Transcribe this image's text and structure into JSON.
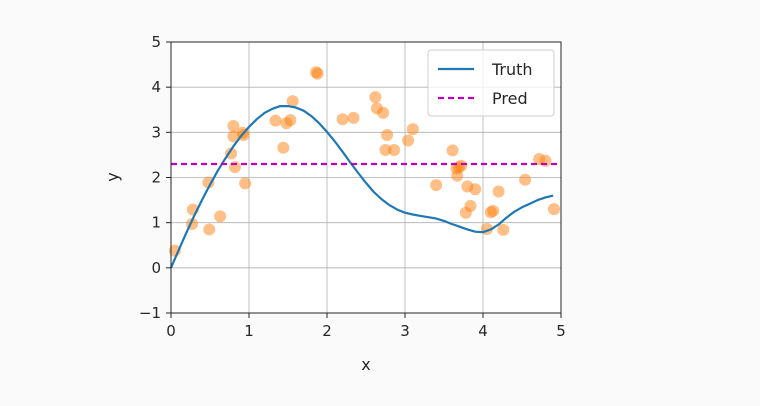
{
  "chart_data": {
    "type": "scatter",
    "xlabel": "x",
    "ylabel": "y",
    "xlim": [
      0,
      5
    ],
    "ylim": [
      -1,
      5
    ],
    "xticks": [
      0,
      1,
      2,
      3,
      4,
      5
    ],
    "yticks": [
      -1,
      0,
      1,
      2,
      3,
      4,
      5
    ],
    "grid": true,
    "legend_position": "top-right",
    "series": [
      {
        "name": "Truth",
        "kind": "line",
        "color": "#1f77b4",
        "x": [
          0.0,
          0.1,
          0.2,
          0.3,
          0.4,
          0.5,
          0.6,
          0.7,
          0.8,
          0.9,
          1.0,
          1.1,
          1.2,
          1.3,
          1.4,
          1.5,
          1.6,
          1.7,
          1.8,
          1.9,
          2.0,
          2.1,
          2.2,
          2.3,
          2.4,
          2.5,
          2.6,
          2.7,
          2.8,
          2.9,
          3.0,
          3.1,
          3.2,
          3.3,
          3.4,
          3.5,
          3.6,
          3.7,
          3.8,
          3.9,
          4.0,
          4.1,
          4.2,
          4.3,
          4.4,
          4.5,
          4.6,
          4.7,
          4.8,
          4.9
        ],
        "y": [
          0.0,
          0.4,
          0.79,
          1.16,
          1.51,
          1.84,
          2.15,
          2.43,
          2.69,
          2.92,
          3.12,
          3.29,
          3.43,
          3.52,
          3.58,
          3.58,
          3.55,
          3.48,
          3.36,
          3.2,
          3.01,
          2.8,
          2.57,
          2.33,
          2.1,
          1.88,
          1.68,
          1.52,
          1.39,
          1.29,
          1.22,
          1.18,
          1.15,
          1.12,
          1.09,
          1.04,
          0.97,
          0.91,
          0.85,
          0.8,
          0.79,
          0.85,
          0.96,
          1.11,
          1.24,
          1.34,
          1.42,
          1.5,
          1.56,
          1.6
        ]
      },
      {
        "name": "Pred",
        "kind": "dashed-line",
        "color": "#bf00bf",
        "x": [
          0,
          4.95
        ],
        "y": [
          2.3,
          2.3
        ]
      },
      {
        "kind": "points",
        "color": "#ff7f0e",
        "x": [
          0.05,
          0.27,
          0.28,
          0.48,
          0.49,
          0.63,
          0.77,
          0.8,
          0.8,
          0.82,
          0.92,
          0.93,
          0.95,
          1.34,
          1.44,
          1.48,
          1.53,
          1.56,
          1.86,
          1.88,
          2.2,
          2.34,
          2.62,
          2.64,
          2.72,
          2.75,
          2.77,
          2.86,
          3.04,
          3.1,
          3.4,
          3.61,
          3.66,
          3.67,
          3.69,
          3.72,
          3.78,
          3.8,
          3.84,
          3.9,
          4.05,
          4.1,
          4.13,
          4.2,
          4.26,
          4.54,
          4.72,
          4.8,
          4.91
        ],
        "y": [
          0.38,
          0.97,
          1.29,
          1.89,
          0.85,
          1.14,
          2.53,
          2.91,
          3.14,
          2.23,
          2.99,
          2.94,
          1.87,
          3.26,
          2.66,
          3.2,
          3.27,
          3.69,
          4.33,
          4.3,
          3.29,
          3.32,
          3.78,
          3.53,
          3.43,
          2.61,
          2.94,
          2.61,
          2.82,
          3.07,
          1.83,
          2.6,
          2.2,
          2.04,
          2.23,
          2.26,
          1.22,
          1.8,
          1.37,
          1.74,
          0.86,
          1.23,
          1.26,
          1.69,
          0.84,
          1.95,
          2.41,
          2.37,
          1.3
        ]
      }
    ]
  }
}
